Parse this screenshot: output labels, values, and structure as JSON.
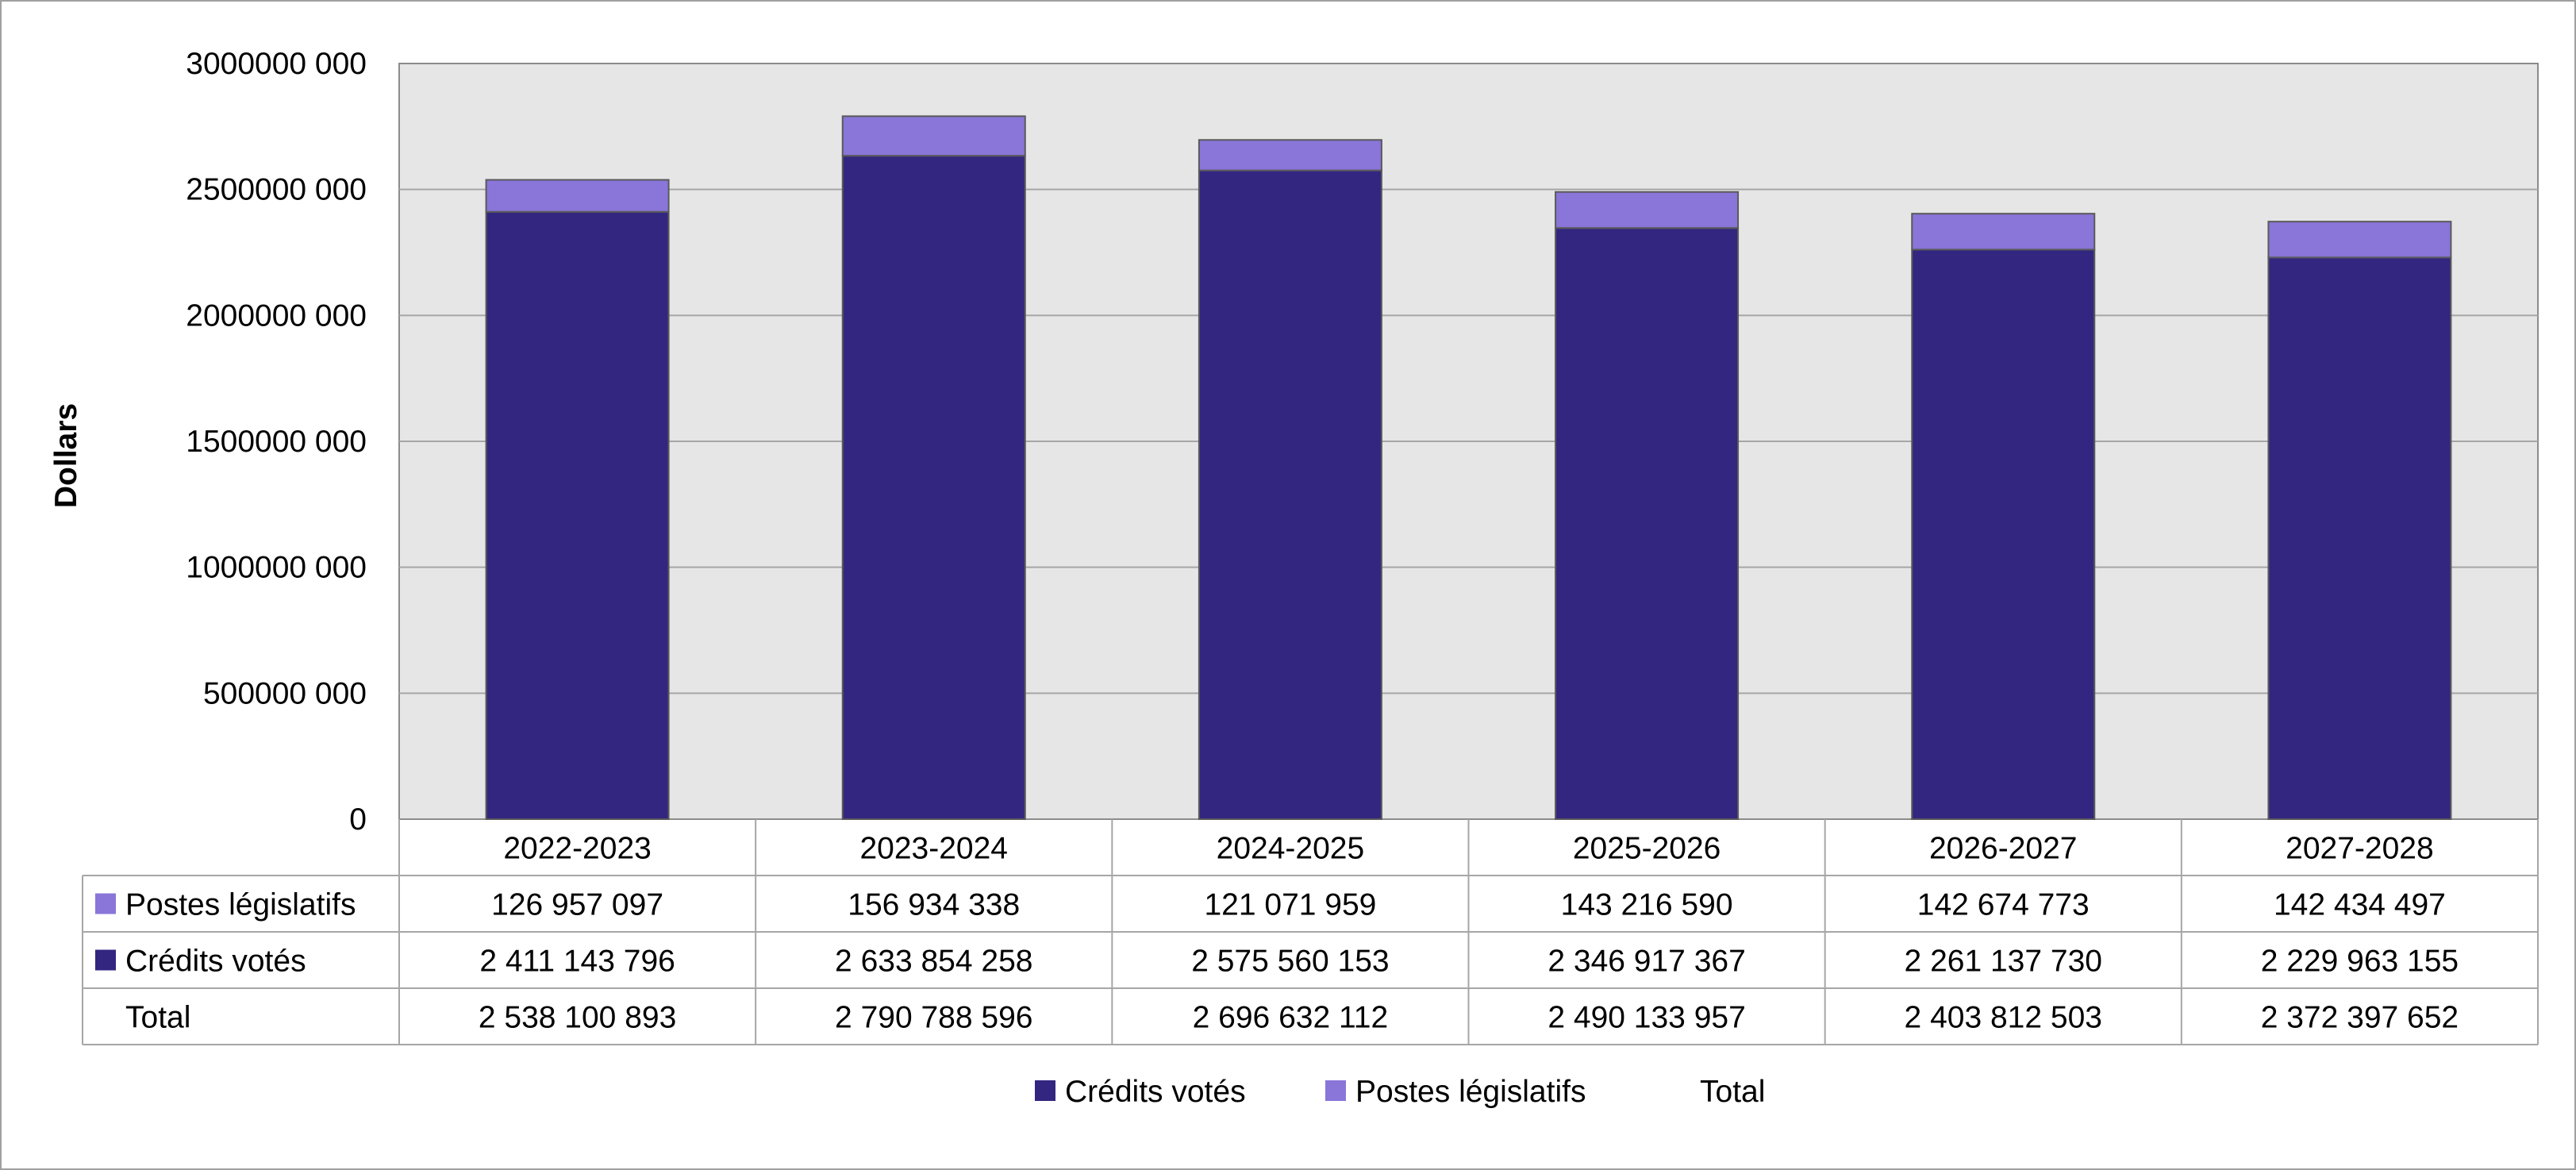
{
  "chart_data": {
    "type": "bar",
    "stacked": true,
    "title": "",
    "xlabel": "",
    "ylabel": "Dollars",
    "ylim": [
      0,
      3000000000
    ],
    "y_ticks": [
      0,
      500000000,
      1000000000,
      1500000000,
      2000000000,
      2500000000,
      3000000000
    ],
    "y_tick_labels": [
      "0",
      "500000 000",
      "1000000 000",
      "1500000 000",
      "2000000 000",
      "2500000 000",
      "3000000 000"
    ],
    "grid": true,
    "categories": [
      "2022-2023",
      "2023-2024",
      "2024-2025",
      "2025-2026",
      "2026-2027",
      "2027-2028"
    ],
    "series": [
      {
        "name": "Crédits votés",
        "color": "#332680",
        "values": [
          2411143796,
          2633854258,
          2575560153,
          2346917367,
          2261137730,
          2229963155
        ],
        "labels": [
          "2 411 143 796",
          "2 633 854 258",
          "2 575 560 153",
          "2 346 917 367",
          "2 261 137 730",
          "2 229 963 155"
        ]
      },
      {
        "name": "Postes législatifs",
        "color": "#8a75d9",
        "values": [
          126957097,
          156934338,
          121071959,
          143216590,
          142674773,
          142434497
        ],
        "labels": [
          "126 957 097",
          "156 934 338",
          "121 071 959",
          "143 216 590",
          "142 674 773",
          "142 434 497"
        ]
      }
    ],
    "total": {
      "name": "Total",
      "values": [
        2538100893,
        2790788596,
        2696632112,
        2490133957,
        2403812503,
        2372397652
      ],
      "labels": [
        "2 538 100 893",
        "2 790 788 596",
        "2 696 632 112",
        "2 490 133 957",
        "2 403 812 503",
        "2 372 397 652"
      ]
    },
    "table_row_order": [
      "Postes législatifs",
      "Crédits votés",
      "Total"
    ],
    "legend": {
      "placement": "bottom",
      "entries": [
        "Crédits votés",
        "Postes législatifs",
        "Total"
      ]
    },
    "plot_background": "#e6e6e6",
    "grid_color": "#a6a6a6"
  }
}
